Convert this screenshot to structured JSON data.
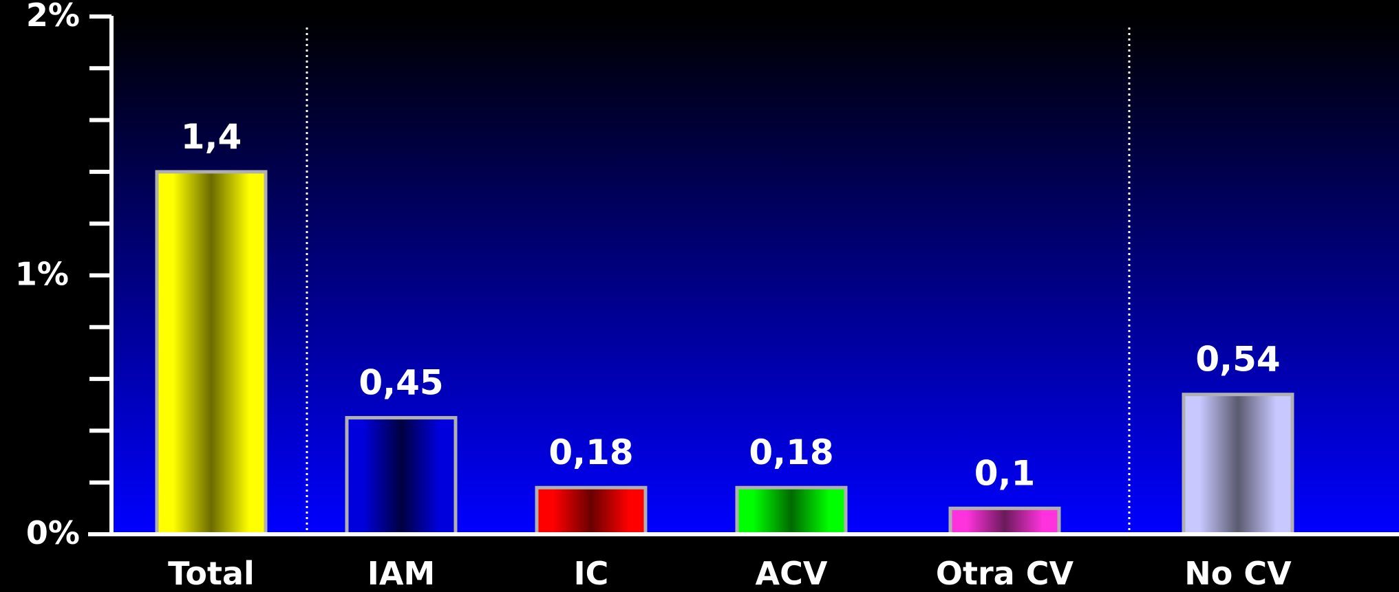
{
  "chart_data": {
    "type": "bar",
    "categories": [
      "Total",
      "IAM",
      "IC",
      "ACV",
      "Otra CV",
      "No CV"
    ],
    "values": [
      1.4,
      0.45,
      0.18,
      0.18,
      0.1,
      0.54
    ],
    "data_labels": [
      "1,4",
      "0,45",
      "0,18",
      "0,18",
      "0,1",
      "0,54"
    ],
    "bar_colors": [
      {
        "edge": "#ffff00",
        "center": "#6b6b00"
      },
      {
        "edge": "#0000dd",
        "center": "#000040"
      },
      {
        "edge": "#ff0000",
        "center": "#6a0000"
      },
      {
        "edge": "#00ff00",
        "center": "#006a00"
      },
      {
        "edge": "#ff33dd",
        "center": "#6a1a5a"
      },
      {
        "edge": "#c8c8ff",
        "center": "#5a5a70"
      }
    ],
    "bar_border_color": "#b0b0b0",
    "ylim": [
      0,
      2
    ],
    "y_ticks": [
      {
        "value": 0,
        "label": "0%"
      },
      {
        "value": 1,
        "label": "1%"
      },
      {
        "value": 2,
        "label": "2%"
      }
    ],
    "minor_tick_step": 0.2,
    "group_separators_after": [
      0,
      4
    ],
    "background_gradient": [
      "#000000",
      "#0000ff"
    ],
    "title": "",
    "xlabel": "",
    "ylabel": "",
    "grid": false,
    "legend": "none"
  }
}
